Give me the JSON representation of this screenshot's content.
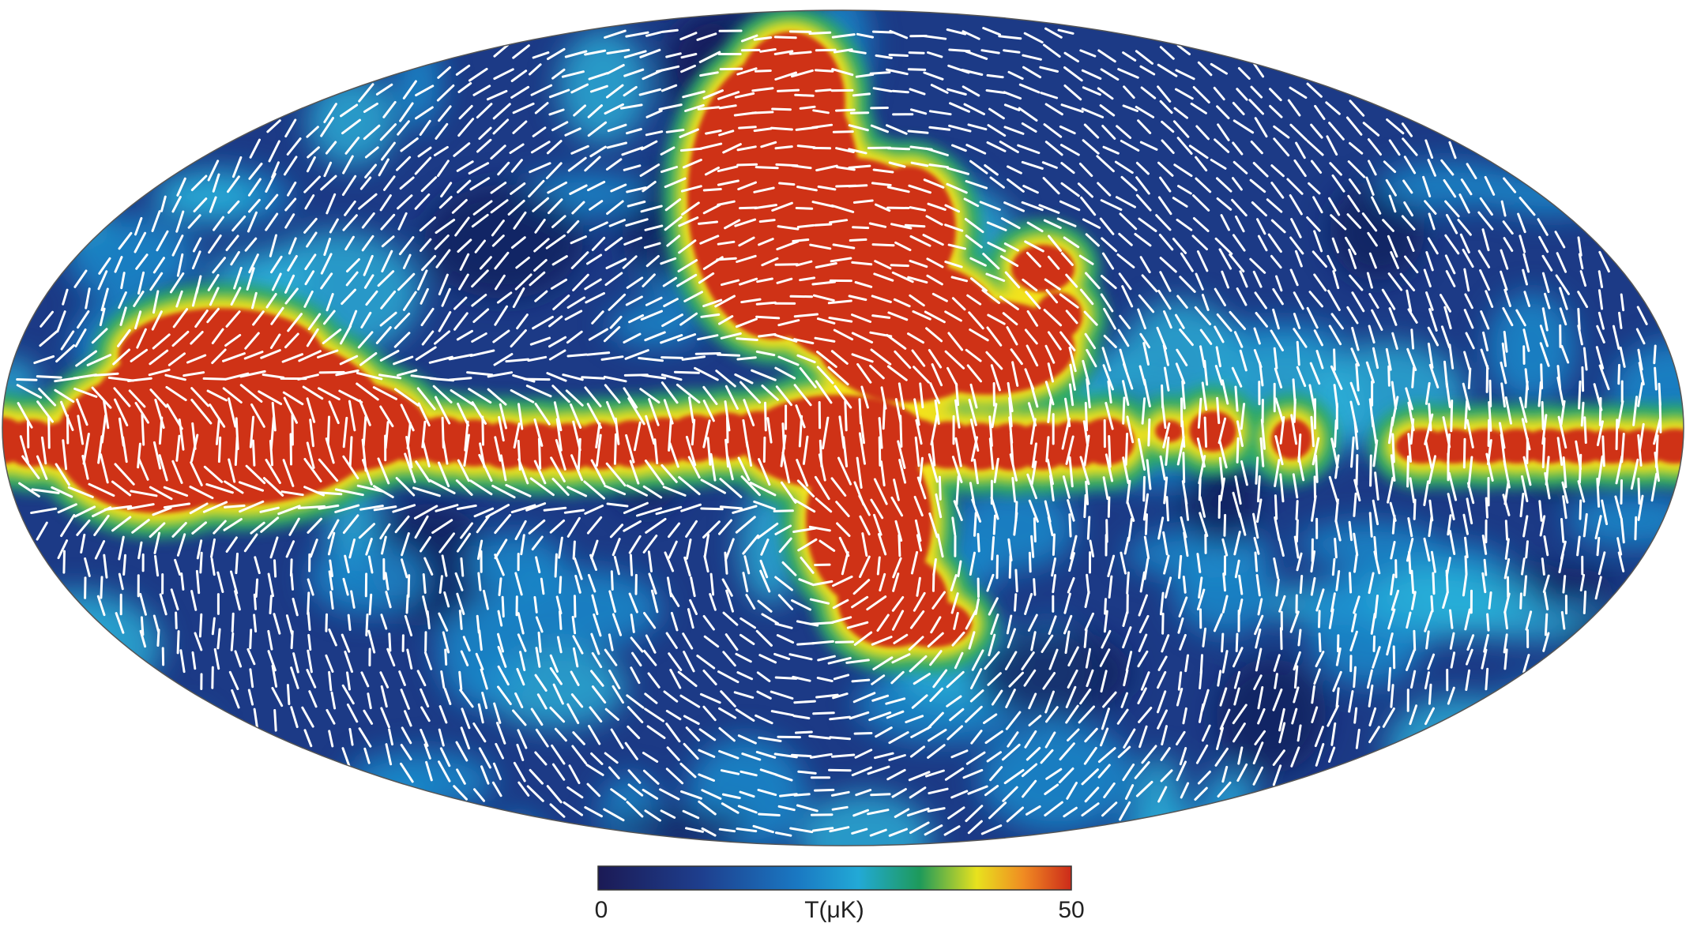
{
  "colorbar": {
    "min_label": "0",
    "title": "T(μK)",
    "max_label": "50"
  }
}
